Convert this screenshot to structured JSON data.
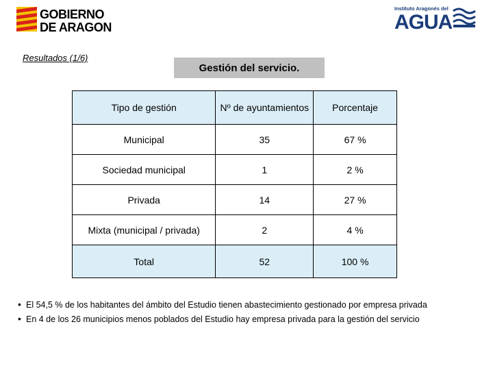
{
  "header": {
    "left_logo": {
      "icon": "aragon-flag-icon",
      "line1": "GOBIERNO",
      "line2": "DE ARAGON",
      "color": "#1b1b1b"
    },
    "right_logo": {
      "icon": "waves-icon",
      "small": "Instituto Aragonés del",
      "big": "AGUA",
      "color": "#1a3c7a"
    }
  },
  "results_label": "Resultados (1/6)",
  "title": "Gestión del servicio.",
  "table": {
    "headers": [
      "Tipo de gestión",
      "Nº de ayuntamientos",
      "Porcentaje"
    ],
    "rows": [
      [
        "Municipal",
        "35",
        "67 %"
      ],
      [
        "Sociedad municipal",
        "1",
        "2 %"
      ],
      [
        "Privada",
        "14",
        "27 %"
      ],
      [
        "Mixta (municipal / privada)",
        "2",
        "4 %"
      ]
    ],
    "total": [
      "Total",
      "52",
      "100 %"
    ]
  },
  "bullets": [
    "El 54,5 % de los habitantes del ámbito del Estudio tienen abastecimiento gestionado por empresa privada",
    "En 4 de los 26 municipios menos poblados del Estudio hay empresa privada para la gestión del servicio"
  ]
}
